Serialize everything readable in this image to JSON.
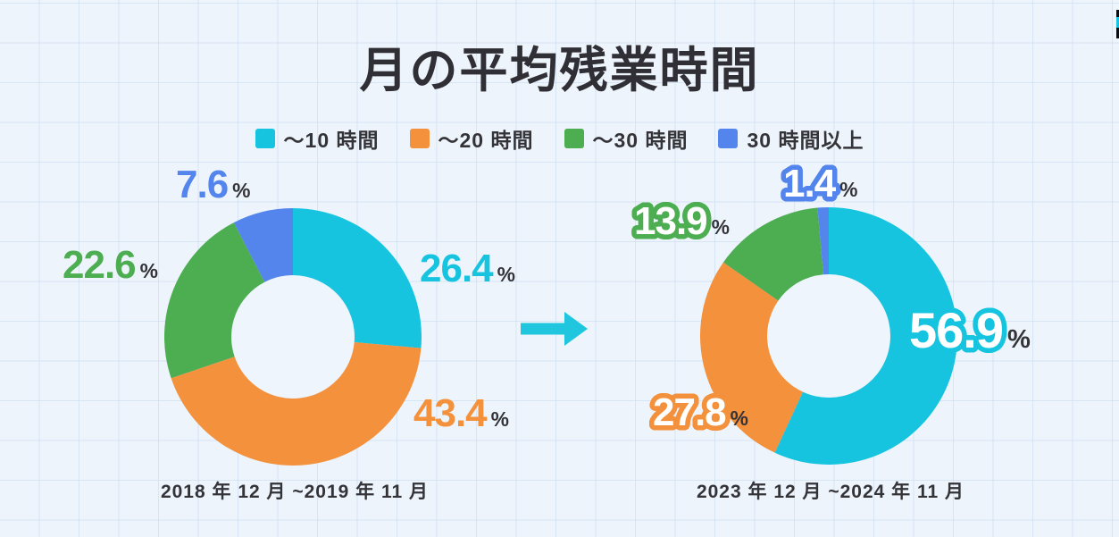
{
  "title": "月の平均残業時間",
  "legend": [
    {
      "label": "～10 時間",
      "color": "#16c4e0"
    },
    {
      "label": "～20 時間",
      "color": "#f3913c"
    },
    {
      "label": "～30 時間",
      "color": "#4cae51"
    },
    {
      "label": "30 時間以上",
      "color": "#5385ec"
    }
  ],
  "arrow": {
    "color": "#1fc6dd",
    "direction": "right"
  },
  "edge_element": {
    "colors": [
      "#0c0c10",
      "#16c4e0",
      "#0c0c10"
    ]
  },
  "text_color": "#333338",
  "background": {
    "base": "#edf4fb",
    "grid_line": "#cdddf0",
    "donut_hole": "#eef5fc"
  },
  "chart_data": [
    {
      "type": "pie",
      "subtype": "donut",
      "caption": "2018 年 12 月 ~2019 年 11 月",
      "categories": [
        "～10 時間",
        "～20 時間",
        "～30 時間",
        "30 時間以上"
      ],
      "values": [
        26.4,
        43.4,
        22.6,
        7.6
      ],
      "unit": "%",
      "colors": [
        "#16c4e0",
        "#f3913c",
        "#4cae51",
        "#5385ec"
      ],
      "label_style": "solid",
      "start_angle_deg": 0,
      "direction": "clockwise",
      "legend_position": "top-center"
    },
    {
      "type": "pie",
      "subtype": "donut",
      "caption": "2023 年 12 月 ~2024 年 11 月",
      "categories": [
        "～10 時間",
        "～20 時間",
        "～30 時間",
        "30 時間以上"
      ],
      "values": [
        56.9,
        27.8,
        13.9,
        1.4
      ],
      "unit": "%",
      "colors": [
        "#16c4e0",
        "#f3913c",
        "#4cae51",
        "#5385ec"
      ],
      "label_style": "outline-white",
      "start_angle_deg": 0,
      "direction": "clockwise",
      "legend_position": "top-center"
    }
  ]
}
